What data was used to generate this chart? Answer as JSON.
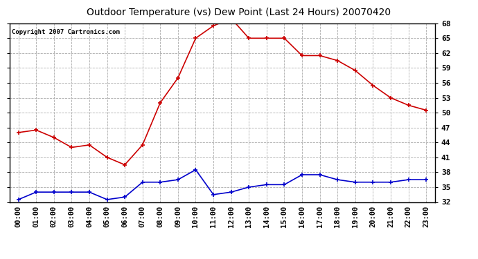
{
  "title": "Outdoor Temperature (vs) Dew Point (Last 24 Hours) 20070420",
  "copyright_text": "Copyright 2007 Cartronics.com",
  "x_labels": [
    "00:00",
    "01:00",
    "02:00",
    "03:00",
    "04:00",
    "05:00",
    "06:00",
    "07:00",
    "08:00",
    "09:00",
    "10:00",
    "11:00",
    "12:00",
    "13:00",
    "14:00",
    "15:00",
    "16:00",
    "17:00",
    "18:00",
    "19:00",
    "20:00",
    "21:00",
    "22:00",
    "23:00"
  ],
  "temp_data": [
    46,
    46.5,
    45,
    43,
    43.5,
    41,
    39.5,
    43.5,
    52,
    57,
    65,
    67.5,
    69,
    65,
    65,
    65,
    61.5,
    61.5,
    60.5,
    58.5,
    55.5,
    53,
    51.5,
    50.5
  ],
  "dew_data": [
    32.5,
    34,
    34,
    34,
    34,
    32.5,
    33,
    36,
    36,
    36.5,
    38.5,
    33.5,
    34,
    35,
    35.5,
    35.5,
    37.5,
    37.5,
    36.5,
    36,
    36,
    36,
    36.5,
    36.5
  ],
  "temp_color": "#cc0000",
  "dew_color": "#0000cc",
  "ylim": [
    32.0,
    68.0
  ],
  "yticks": [
    32.0,
    35.0,
    38.0,
    41.0,
    44.0,
    47.0,
    50.0,
    53.0,
    56.0,
    59.0,
    62.0,
    65.0,
    68.0
  ],
  "grid_color": "#aaaaaa",
  "bg_color": "#ffffff",
  "plot_bg_color": "#ffffff",
  "title_fontsize": 10,
  "copyright_fontsize": 6.5,
  "tick_fontsize": 7.5,
  "ytick_fontsize": 8
}
